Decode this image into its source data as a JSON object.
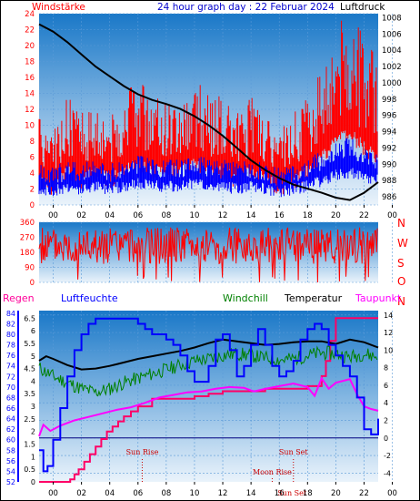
{
  "header": {
    "title": "24 hour graph day : 22 Februar 2024",
    "left_label": "Windstärke",
    "right_label": "Luftdruck"
  },
  "x_ticks": [
    "00",
    "02",
    "04",
    "06",
    "08",
    "10",
    "12",
    "14",
    "16",
    "18",
    "20",
    "22",
    "00"
  ],
  "colors": {
    "wind": "#ff0000",
    "gust_band": "#0000ff",
    "pressure": "#000000",
    "direction": "#ff0000",
    "humidity": "#0000ff",
    "windchill": "#008000",
    "temperature": "#000000",
    "dewpoint": "#ff00ff",
    "rain": "#ff0066",
    "title": "#0000cc",
    "plot_top": "#1a78c8",
    "plot_bottom": "#eaf3fb"
  },
  "chart_data": [
    {
      "type": "line",
      "name": "wind_pressure",
      "y_left_ticks": [
        "0",
        "2",
        "4",
        "6",
        "8",
        "10",
        "12",
        "14",
        "16",
        "18",
        "20",
        "22",
        "24"
      ],
      "y_left_range": [
        0,
        24
      ],
      "y_right_ticks": [
        "986",
        "988",
        "990",
        "992",
        "994",
        "996",
        "998",
        "1000",
        "1002",
        "1004",
        "1006",
        "1008"
      ],
      "y_right_range": [
        985,
        1008.5
      ],
      "pressure": {
        "x": [
          0,
          1,
          2,
          3,
          4,
          5,
          6,
          7,
          8,
          9,
          10,
          11,
          12,
          13,
          14,
          15,
          16,
          17,
          18,
          19,
          20,
          21,
          22,
          23,
          24
        ],
        "values": [
          1007.2,
          1006.3,
          1005.0,
          1003.5,
          1002.0,
          1000.8,
          999.6,
          998.6,
          997.9,
          997.4,
          996.8,
          995.9,
          994.8,
          993.5,
          992.0,
          990.5,
          989.3,
          988.3,
          987.5,
          987.0,
          986.5,
          985.9,
          985.6,
          986.5,
          987.8
        ]
      },
      "wind_base_by_hour": [
        5,
        4,
        6,
        5,
        6,
        5,
        6,
        7,
        6,
        6,
        6,
        7,
        6,
        6,
        5,
        6,
        5,
        4,
        5,
        6,
        8,
        10,
        11,
        9,
        8
      ]
    },
    {
      "type": "scatter",
      "name": "wind_direction",
      "y_ticks": [
        "0",
        "90",
        "180",
        "270",
        "360"
      ],
      "y_range": [
        0,
        360
      ],
      "compass_labels": [
        "N",
        "W",
        "S",
        "O",
        "N"
      ],
      "mean_direction_deg": 220
    },
    {
      "type": "line",
      "name": "weather",
      "legend": [
        "Regen",
        "Luftfeuchte",
        "Windchill",
        "Temperatur",
        "Taupunkt"
      ],
      "y_humidity_ticks": [
        "52",
        "54",
        "56",
        "58",
        "60",
        "62",
        "64",
        "66",
        "68",
        "70",
        "72",
        "74",
        "76",
        "78",
        "80",
        "82",
        "84"
      ],
      "y_humidity_range": [
        52,
        84.5
      ],
      "y_rain_ticks": [
        "0",
        "0.5",
        "1",
        "1.5",
        "2",
        "2.5",
        "3",
        "3.5",
        "4",
        "4.5",
        "5",
        "5.5",
        "6",
        "6.5"
      ],
      "y_rain_range": [
        0,
        6.8
      ],
      "y_temp_ticks": [
        "-4",
        "-2",
        "0",
        "2",
        "4",
        "6",
        "8",
        "10",
        "12",
        "14"
      ],
      "y_temp_range": [
        -5,
        14.5
      ],
      "temperature": {
        "x": [
          0,
          0.5,
          1,
          2,
          3,
          4,
          5,
          6,
          7,
          8,
          9,
          10,
          11,
          12,
          13,
          14,
          15,
          16,
          17,
          18,
          19,
          20,
          21,
          22,
          23,
          24
        ],
        "values": [
          8.8,
          9.3,
          9.0,
          8.3,
          7.8,
          7.9,
          8.2,
          8.6,
          9.0,
          9.3,
          9.6,
          9.9,
          10.3,
          10.8,
          11.2,
          11.0,
          10.8,
          10.6,
          10.7,
          10.9,
          11.0,
          11.0,
          10.7,
          11.2,
          10.9,
          10.3
        ]
      },
      "windchill": {
        "x": [
          0,
          1,
          2,
          3,
          4,
          5,
          6,
          7,
          8,
          9,
          10,
          11,
          12,
          13,
          14,
          15,
          16,
          17,
          18,
          19,
          20,
          21,
          22,
          23,
          24
        ],
        "values": [
          8.0,
          7.0,
          6.3,
          5.6,
          5.2,
          5.6,
          6.3,
          6.8,
          7.3,
          7.8,
          8.3,
          8.8,
          9.0,
          9.4,
          9.6,
          9.4,
          9.1,
          8.9,
          9.0,
          9.4,
          9.7,
          9.6,
          9.2,
          9.6,
          9.2
        ]
      },
      "dewpoint": {
        "x": [
          0,
          0.3,
          0.8,
          1.5,
          2.5,
          3.5,
          4.5,
          5.5,
          6.5,
          7.5,
          8.5,
          9.5,
          10.5,
          11.5,
          12.5,
          13.5,
          14.5,
          15.2,
          16,
          17,
          18,
          19,
          19.5,
          20,
          20.5,
          21,
          22,
          22.5,
          23,
          23.5,
          24
        ],
        "values": [
          0.2,
          1.5,
          0.8,
          1.4,
          2.0,
          2.4,
          2.8,
          3.2,
          3.5,
          4.0,
          4.6,
          4.9,
          5.2,
          5.3,
          5.6,
          5.8,
          5.7,
          5.3,
          5.6,
          5.9,
          6.2,
          5.8,
          4.8,
          6.8,
          5.6,
          6.3,
          6.7,
          5.0,
          3.6,
          3.3,
          3.1
        ]
      },
      "humidity": {
        "x": [
          0,
          0.3,
          0.6,
          1,
          1.5,
          2,
          2.5,
          3,
          3.5,
          4,
          4.5,
          5,
          5.5,
          6,
          6.5,
          7,
          7.5,
          8,
          8.5,
          9,
          9.5,
          10,
          10.5,
          11,
          11.5,
          12,
          12.5,
          13,
          13.5,
          14,
          14.5,
          15,
          15.5,
          16,
          16.5,
          17,
          17.5,
          18,
          18.5,
          19,
          19.5,
          20,
          20.5,
          21,
          21.5,
          22,
          22.5,
          23,
          23.5,
          24
        ],
        "values": [
          58,
          54,
          55,
          60,
          66,
          72,
          77,
          80,
          82,
          83,
          83,
          83,
          83,
          83,
          83,
          82,
          81,
          80,
          80,
          79,
          78,
          76,
          73,
          71,
          71,
          74,
          79,
          80,
          77,
          72,
          74,
          78,
          81,
          78,
          74,
          72,
          73,
          75,
          79,
          81,
          82,
          81,
          78,
          76,
          74,
          72,
          68,
          62,
          61,
          64
        ]
      },
      "rain": {
        "x": [
          0,
          1.5,
          2.2,
          2.5,
          2.8,
          3.2,
          3.6,
          4.0,
          4.4,
          4.8,
          5.2,
          5.6,
          6.0,
          6.5,
          7.0,
          8.0,
          9.0,
          10.0,
          11.0,
          12.0,
          13.0,
          14.0,
          15.0,
          16.0,
          17.0,
          18.0,
          19.0,
          20.0,
          20.3,
          20.6,
          21.0,
          22.0,
          23.0,
          24.0
        ],
        "values": [
          0,
          0,
          0.1,
          0.3,
          0.5,
          0.8,
          1.1,
          1.4,
          1.7,
          2.0,
          2.2,
          2.4,
          2.6,
          2.8,
          3.0,
          3.3,
          3.3,
          3.3,
          3.4,
          3.5,
          3.6,
          3.6,
          3.6,
          3.7,
          3.7,
          3.7,
          3.8,
          4.2,
          4.8,
          5.6,
          6.5,
          6.5,
          6.5,
          6.5
        ]
      },
      "annotations": [
        {
          "label": "Sun Rise",
          "hour": 7.3,
          "row": "upper"
        },
        {
          "label": "Sun Set",
          "hour": 18.0,
          "row": "upper"
        },
        {
          "label": "Moon Rise",
          "hour": 16.5,
          "row": "lower"
        },
        {
          "label": "Sun Set",
          "hour": 17.9,
          "row": "bottom"
        }
      ]
    }
  ]
}
